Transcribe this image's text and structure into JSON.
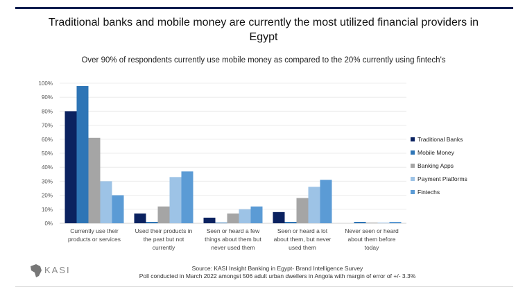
{
  "title": "Traditional banks and mobile money are currently the most utilized financial providers in Egypt",
  "subtitle": "Over 90% of respondents currently use mobile money as compared to the 20% currently using fintech's",
  "source_line1": "Source: KASI Insight Banking in Egypt- Brand Intelligence Survey",
  "source_line2": "Poll conducted in March 2022 amongst 506 adult urban dwellers in Angola with margin of error of +/- 3.3%",
  "logo_text": "KASI",
  "chart_data": {
    "type": "bar",
    "categories": [
      [
        "Currently use their",
        "products or services"
      ],
      [
        "Used their products in",
        "the past but not",
        "currently"
      ],
      [
        "Seen or heard a few",
        "things about them but",
        "never used them"
      ],
      [
        "Seen or heard a lot",
        "about them, but never",
        "used them"
      ],
      [
        "Never seen or heard",
        "about them before",
        "today"
      ]
    ],
    "series": [
      {
        "name": "Traditional Banks",
        "color": "#0b2260",
        "values": [
          80,
          7,
          4,
          8,
          0
        ]
      },
      {
        "name": "Mobile Money",
        "color": "#2e75b6",
        "values": [
          98,
          1,
          0.5,
          1,
          1
        ]
      },
      {
        "name": "Banking Apps",
        "color": "#a5a5a5",
        "values": [
          61,
          12,
          7,
          18,
          0.5
        ]
      },
      {
        "name": "Payment Platforms",
        "color": "#9dc3e6",
        "values": [
          30,
          33,
          10,
          26,
          0.5
        ]
      },
      {
        "name": "Fintechs",
        "color": "#5b9bd5",
        "values": [
          20,
          37,
          12,
          31,
          1
        ]
      }
    ],
    "yticks": [
      "0%",
      "10%",
      "20%",
      "30%",
      "40%",
      "50%",
      "60%",
      "70%",
      "80%",
      "90%",
      "100%"
    ],
    "ylim": [
      0,
      100
    ],
    "grid": true,
    "legend": "right"
  }
}
